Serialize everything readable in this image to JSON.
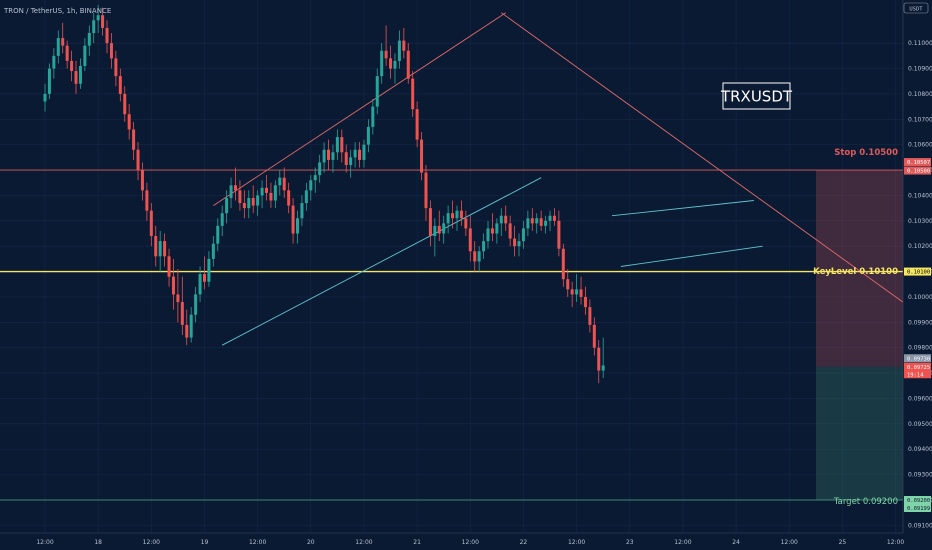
{
  "header": {
    "title": "TRON / TetherUS, 1h, BINANCE",
    "currency_badge": "USDT"
  },
  "symbol_box": "TRXUSDT",
  "chart_data": {
    "type": "candlestick",
    "title": "TRON / TetherUS, 1h, BINANCE",
    "ylim": [
      0.0907,
      0.1117
    ],
    "y_ticks": [
      "0.11000",
      "0.10900",
      "0.10800",
      "0.10700",
      "0.10600",
      "0.10500",
      "0.10400",
      "0.10300",
      "0.10200",
      "0.10100",
      "0.10000",
      "0.09900",
      "0.09800",
      "0.09700",
      "0.09600",
      "0.09500",
      "0.09400",
      "0.09300",
      "0.09200",
      "0.09100"
    ],
    "x_ticks": [
      {
        "label": "12:00",
        "t": 0
      },
      {
        "label": "18",
        "t": 12
      },
      {
        "label": "12:00",
        "t": 24
      },
      {
        "label": "19",
        "t": 36
      },
      {
        "label": "12:00",
        "t": 48
      },
      {
        "label": "20",
        "t": 60
      },
      {
        "label": "12:00",
        "t": 72
      },
      {
        "label": "21",
        "t": 84
      },
      {
        "label": "12:00",
        "t": 96
      },
      {
        "label": "22",
        "t": 108
      },
      {
        "label": "12:00",
        "t": 120
      },
      {
        "label": "23",
        "t": 132
      },
      {
        "label": "12:00",
        "t": 144
      },
      {
        "label": "24",
        "t": 156
      },
      {
        "label": "12:00",
        "t": 168
      },
      {
        "label": "25",
        "t": 180
      },
      {
        "label": "12:00",
        "t": 192
      }
    ],
    "colors": {
      "up": "#26a69a",
      "down": "#ef5350",
      "key_level": "#f5e663",
      "stop": "#e05a5a",
      "target": "#4caf82",
      "trend_down": "#e06a6a",
      "trend_up": "#5fc4d0",
      "channel": "#5fc4d0"
    },
    "key_level": {
      "price": 0.101,
      "label": "KeyLevel 0.10100",
      "tag": "0.10100"
    },
    "stop_level": {
      "price": 0.105,
      "label": "Stop 0.10500",
      "tags": [
        "0.10507",
        "0.10500"
      ]
    },
    "target_level": {
      "price": 0.092,
      "label": "Target 0.09200",
      "tags": [
        "0.09200",
        "0.09199"
      ]
    },
    "current_price": {
      "price": 0.09725,
      "tags": [
        "0.09730",
        "0.09725",
        "19:14"
      ]
    },
    "trendlines": [
      {
        "name": "resistance-fall",
        "t1": 103,
        "p1": 0.1112,
        "t2": 200,
        "p2": 0.099,
        "color": "trend_down"
      },
      {
        "name": "rising-wedge-top",
        "t1": 38,
        "p1": 0.1036,
        "t2": 104,
        "p2": 0.1112,
        "color": "trend_down"
      },
      {
        "name": "rising-support",
        "t1": 40,
        "p1": 0.0981,
        "t2": 112,
        "p2": 0.1047,
        "color": "trend_up"
      },
      {
        "name": "channel-top",
        "t1": 128,
        "p1": 0.1032,
        "t2": 160,
        "p2": 0.1038,
        "color": "channel"
      },
      {
        "name": "channel-bottom",
        "t1": 130,
        "p1": 0.1012,
        "t2": 162,
        "p2": 0.102,
        "color": "channel"
      }
    ],
    "candles": [
      [
        0.1077,
        0.1084,
        0.1073,
        0.108
      ],
      [
        0.108,
        0.1092,
        0.1078,
        0.109
      ],
      [
        0.109,
        0.1098,
        0.1086,
        0.1095
      ],
      [
        0.1095,
        0.1105,
        0.1092,
        0.1102
      ],
      [
        0.1102,
        0.1108,
        0.1096,
        0.1099
      ],
      [
        0.1099,
        0.1101,
        0.109,
        0.1093
      ],
      [
        0.1093,
        0.1097,
        0.1085,
        0.1089
      ],
      [
        0.1089,
        0.1093,
        0.108,
        0.1084
      ],
      [
        0.1084,
        0.1094,
        0.1082,
        0.1091
      ],
      [
        0.1091,
        0.1102,
        0.1089,
        0.1099
      ],
      [
        0.1099,
        0.1107,
        0.1095,
        0.1104
      ],
      [
        0.1104,
        0.1112,
        0.11,
        0.1109
      ],
      [
        0.1109,
        0.1115,
        0.1104,
        0.1111
      ],
      [
        0.1111,
        0.1114,
        0.1103,
        0.1106
      ],
      [
        0.1106,
        0.1109,
        0.1096,
        0.11
      ],
      [
        0.11,
        0.1104,
        0.109,
        0.1094
      ],
      [
        0.1094,
        0.1097,
        0.1083,
        0.1087
      ],
      [
        0.1087,
        0.109,
        0.1077,
        0.108
      ],
      [
        0.108,
        0.1083,
        0.1069,
        0.1072
      ],
      [
        0.1072,
        0.1076,
        0.1062,
        0.1066
      ],
      [
        0.1066,
        0.1069,
        0.1054,
        0.1058
      ],
      [
        0.1058,
        0.1061,
        0.1046,
        0.105
      ],
      [
        0.105,
        0.1053,
        0.1038,
        0.1042
      ],
      [
        0.1042,
        0.1045,
        0.103,
        0.1034
      ],
      [
        0.1034,
        0.1037,
        0.102,
        0.1024
      ],
      [
        0.1024,
        0.1028,
        0.1012,
        0.1016
      ],
      [
        0.1016,
        0.1026,
        0.101,
        0.1022
      ],
      [
        0.1022,
        0.1025,
        0.1012,
        0.1016
      ],
      [
        0.1016,
        0.1019,
        0.1004,
        0.1008
      ],
      [
        0.1008,
        0.1015,
        0.0995,
        0.1001
      ],
      [
        0.1001,
        0.1011,
        0.099,
        0.0998
      ],
      [
        0.0998,
        0.1008,
        0.0985,
        0.0989
      ],
      [
        0.0989,
        0.0995,
        0.0981,
        0.0984
      ],
      [
        0.0984,
        0.0996,
        0.0982,
        0.0993
      ],
      [
        0.0993,
        0.1004,
        0.099,
        0.1001
      ],
      [
        0.1001,
        0.1012,
        0.0998,
        0.1009
      ],
      [
        0.1009,
        0.1016,
        0.1003,
        0.1006
      ],
      [
        0.1006,
        0.1018,
        0.1004,
        0.1015
      ],
      [
        0.1015,
        0.1024,
        0.1012,
        0.1021
      ],
      [
        0.1021,
        0.1031,
        0.1018,
        0.1028
      ],
      [
        0.1028,
        0.1036,
        0.1024,
        0.1033
      ],
      [
        0.1033,
        0.1042,
        0.1029,
        0.1039
      ],
      [
        0.1039,
        0.1047,
        0.1035,
        0.1044
      ],
      [
        0.1044,
        0.1051,
        0.1038,
        0.1042
      ],
      [
        0.1042,
        0.1046,
        0.1034,
        0.1037
      ],
      [
        0.1037,
        0.1042,
        0.1031,
        0.1035
      ],
      [
        0.1035,
        0.1042,
        0.1031,
        0.1039
      ],
      [
        0.1039,
        0.1044,
        0.1033,
        0.1036
      ],
      [
        0.1036,
        0.1042,
        0.1032,
        0.104
      ],
      [
        0.104,
        0.1046,
        0.1035,
        0.1043
      ],
      [
        0.1043,
        0.1048,
        0.1038,
        0.1041
      ],
      [
        0.1041,
        0.1045,
        0.1035,
        0.1038
      ],
      [
        0.1038,
        0.1046,
        0.1035,
        0.1044
      ],
      [
        0.1044,
        0.105,
        0.104,
        0.1047
      ],
      [
        0.1047,
        0.1051,
        0.1039,
        0.1042
      ],
      [
        0.1042,
        0.1045,
        0.1033,
        0.1036
      ],
      [
        0.1036,
        0.1039,
        0.1021,
        0.1025
      ],
      [
        0.1025,
        0.1034,
        0.1021,
        0.1031
      ],
      [
        0.1031,
        0.104,
        0.1028,
        0.1037
      ],
      [
        0.1037,
        0.1045,
        0.1034,
        0.1042
      ],
      [
        0.1042,
        0.1048,
        0.1038,
        0.1046
      ],
      [
        0.1046,
        0.1051,
        0.1041,
        0.1048
      ],
      [
        0.1048,
        0.1056,
        0.1045,
        0.1053
      ],
      [
        0.1053,
        0.1061,
        0.1049,
        0.1058
      ],
      [
        0.1058,
        0.1062,
        0.105,
        0.1054
      ],
      [
        0.1054,
        0.106,
        0.1049,
        0.1057
      ],
      [
        0.1057,
        0.1066,
        0.1054,
        0.1063
      ],
      [
        0.1063,
        0.1066,
        0.1053,
        0.1057
      ],
      [
        0.1057,
        0.106,
        0.1049,
        0.1052
      ],
      [
        0.1052,
        0.1058,
        0.1047,
        0.1055
      ],
      [
        0.1055,
        0.1061,
        0.1051,
        0.1058
      ],
      [
        0.1058,
        0.1061,
        0.1051,
        0.1054
      ],
      [
        0.1054,
        0.1062,
        0.1051,
        0.106
      ],
      [
        0.106,
        0.107,
        0.1057,
        0.1067
      ],
      [
        0.1067,
        0.1078,
        0.1064,
        0.1075
      ],
      [
        0.1075,
        0.109,
        0.1072,
        0.1087
      ],
      [
        0.1087,
        0.11,
        0.1084,
        0.1097
      ],
      [
        0.1097,
        0.1107,
        0.1091,
        0.1094
      ],
      [
        0.1094,
        0.1099,
        0.1086,
        0.109
      ],
      [
        0.109,
        0.1096,
        0.1084,
        0.1093
      ],
      [
        0.1093,
        0.1105,
        0.109,
        0.1101
      ],
      [
        0.1101,
        0.1106,
        0.1094,
        0.1097
      ],
      [
        0.1097,
        0.11,
        0.1084,
        0.1086
      ],
      [
        0.1086,
        0.1089,
        0.1071,
        0.1074
      ],
      [
        0.1074,
        0.1077,
        0.1059,
        0.1062
      ],
      [
        0.1062,
        0.1065,
        0.1046,
        0.1049
      ],
      [
        0.1049,
        0.1052,
        0.103,
        0.1035
      ],
      [
        0.1035,
        0.1038,
        0.102,
        0.1024
      ],
      [
        0.1024,
        0.1031,
        0.1016,
        0.1028
      ],
      [
        0.1028,
        0.1034,
        0.1022,
        0.1025
      ],
      [
        0.1025,
        0.1032,
        0.1021,
        0.1029
      ],
      [
        0.1029,
        0.1036,
        0.1025,
        0.1033
      ],
      [
        0.1033,
        0.1038,
        0.1027,
        0.1031
      ],
      [
        0.1031,
        0.1036,
        0.1026,
        0.1034
      ],
      [
        0.1034,
        0.1038,
        0.1028,
        0.1031
      ],
      [
        0.1031,
        0.1034,
        0.1024,
        0.1027
      ],
      [
        0.1027,
        0.1032,
        0.1014,
        0.1018
      ],
      [
        0.1018,
        0.1022,
        0.101,
        0.1014
      ],
      [
        0.1014,
        0.102,
        0.101,
        0.1018
      ],
      [
        0.1018,
        0.1025,
        0.1015,
        0.1022
      ],
      [
        0.1022,
        0.103,
        0.1019,
        0.1027
      ],
      [
        0.1027,
        0.1033,
        0.1022,
        0.1025
      ],
      [
        0.1025,
        0.1031,
        0.1021,
        0.1029
      ],
      [
        0.1029,
        0.1035,
        0.1024,
        0.1032
      ],
      [
        0.1032,
        0.1036,
        0.1026,
        0.1029
      ],
      [
        0.1029,
        0.1032,
        0.102,
        0.1023
      ],
      [
        0.1023,
        0.1028,
        0.1016,
        0.102
      ],
      [
        0.102,
        0.1025,
        0.1016,
        0.1022
      ],
      [
        0.1022,
        0.103,
        0.1019,
        0.1027
      ],
      [
        0.1027,
        0.1034,
        0.1024,
        0.1031
      ],
      [
        0.1031,
        0.1035,
        0.1026,
        0.1029
      ],
      [
        0.1029,
        0.1033,
        0.1025,
        0.1031
      ],
      [
        0.1031,
        0.1034,
        0.1026,
        0.1028
      ],
      [
        0.1028,
        0.1032,
        0.1025,
        0.103
      ],
      [
        0.103,
        0.1034,
        0.1026,
        0.1032
      ],
      [
        0.1032,
        0.1035,
        0.1028,
        0.103
      ],
      [
        0.103,
        0.1034,
        0.1016,
        0.1019
      ],
      [
        0.1019,
        0.1021,
        0.1004,
        0.1007
      ],
      [
        0.1007,
        0.1011,
        0.1,
        0.1003
      ],
      [
        0.1003,
        0.1006,
        0.0996,
        0.1001
      ],
      [
        0.1001,
        0.1009,
        0.0998,
        0.1003
      ],
      [
        0.1003,
        0.1008,
        0.0997,
        0.1
      ],
      [
        0.1,
        0.1004,
        0.0993,
        0.0996
      ],
      [
        0.0996,
        0.0999,
        0.0986,
        0.0989
      ],
      [
        0.0989,
        0.0992,
        0.0977,
        0.098
      ],
      [
        0.098,
        0.0983,
        0.0966,
        0.0971
      ],
      [
        0.0971,
        0.0984,
        0.0968,
        0.0973
      ]
    ]
  }
}
